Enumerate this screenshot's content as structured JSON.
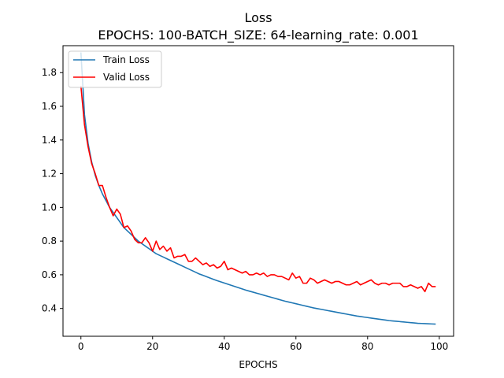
{
  "chart_data": {
    "type": "line",
    "title": "Loss",
    "subtitle": "EPOCHS: 100-BATCH_SIZE: 64-learning_rate: 0.001",
    "xlabel": "EPOCHS",
    "ylabel": "",
    "xlim": [
      -5,
      104
    ],
    "ylim": [
      0.235,
      1.96
    ],
    "xticks": [
      0,
      20,
      40,
      60,
      80,
      100
    ],
    "xtick_labels": [
      "0",
      "20",
      "40",
      "60",
      "80",
      "100"
    ],
    "yticks": [
      0.4,
      0.6,
      0.8,
      1.0,
      1.2,
      1.4,
      1.6,
      1.8
    ],
    "ytick_labels": [
      "0.4",
      "0.6",
      "0.8",
      "1.0",
      "1.2",
      "1.4",
      "1.6",
      "1.8"
    ],
    "grid": false,
    "legend_position": "top-left",
    "x": [
      0,
      1,
      2,
      3,
      4,
      5,
      6,
      7,
      8,
      9,
      10,
      11,
      12,
      13,
      14,
      15,
      16,
      17,
      18,
      19,
      20,
      21,
      22,
      23,
      24,
      25,
      26,
      27,
      28,
      29,
      30,
      31,
      32,
      33,
      34,
      35,
      36,
      37,
      38,
      39,
      40,
      41,
      42,
      43,
      44,
      45,
      46,
      47,
      48,
      49,
      50,
      51,
      52,
      53,
      54,
      55,
      56,
      57,
      58,
      59,
      60,
      61,
      62,
      63,
      64,
      65,
      66,
      67,
      68,
      69,
      70,
      71,
      72,
      73,
      74,
      75,
      76,
      77,
      78,
      79,
      80,
      81,
      82,
      83,
      84,
      85,
      86,
      87,
      88,
      89,
      90,
      91,
      92,
      93,
      94,
      95,
      96,
      97,
      98,
      99
    ],
    "series": [
      {
        "name": "Train Loss",
        "color": "#1f77b4",
        "values": [
          1.92,
          1.55,
          1.38,
          1.27,
          1.19,
          1.13,
          1.08,
          1.04,
          1.0,
          0.97,
          0.94,
          0.91,
          0.88,
          0.86,
          0.84,
          0.82,
          0.8,
          0.785,
          0.77,
          0.755,
          0.74,
          0.725,
          0.715,
          0.705,
          0.695,
          0.685,
          0.675,
          0.665,
          0.655,
          0.645,
          0.635,
          0.625,
          0.615,
          0.605,
          0.597,
          0.589,
          0.581,
          0.573,
          0.565,
          0.558,
          0.551,
          0.544,
          0.537,
          0.53,
          0.523,
          0.516,
          0.509,
          0.503,
          0.497,
          0.491,
          0.485,
          0.479,
          0.473,
          0.467,
          0.461,
          0.455,
          0.449,
          0.443,
          0.438,
          0.433,
          0.428,
          0.423,
          0.418,
          0.413,
          0.408,
          0.403,
          0.399,
          0.395,
          0.391,
          0.387,
          0.383,
          0.379,
          0.375,
          0.371,
          0.367,
          0.363,
          0.359,
          0.355,
          0.352,
          0.349,
          0.346,
          0.343,
          0.34,
          0.337,
          0.334,
          0.331,
          0.328,
          0.326,
          0.324,
          0.322,
          0.32,
          0.318,
          0.316,
          0.314,
          0.312,
          0.311,
          0.31,
          0.309,
          0.308,
          0.307
        ]
      },
      {
        "name": "Valid Loss",
        "color": "#ff0000",
        "values": [
          1.72,
          1.49,
          1.36,
          1.26,
          1.2,
          1.13,
          1.13,
          1.06,
          1.0,
          0.95,
          0.99,
          0.96,
          0.88,
          0.89,
          0.86,
          0.81,
          0.79,
          0.79,
          0.82,
          0.79,
          0.74,
          0.8,
          0.75,
          0.77,
          0.74,
          0.76,
          0.7,
          0.71,
          0.71,
          0.72,
          0.68,
          0.68,
          0.7,
          0.68,
          0.66,
          0.67,
          0.65,
          0.66,
          0.64,
          0.65,
          0.68,
          0.63,
          0.64,
          0.63,
          0.62,
          0.61,
          0.62,
          0.6,
          0.6,
          0.61,
          0.6,
          0.61,
          0.59,
          0.6,
          0.6,
          0.59,
          0.59,
          0.58,
          0.57,
          0.61,
          0.58,
          0.59,
          0.55,
          0.55,
          0.58,
          0.57,
          0.55,
          0.56,
          0.57,
          0.56,
          0.55,
          0.56,
          0.56,
          0.55,
          0.54,
          0.54,
          0.55,
          0.56,
          0.54,
          0.55,
          0.56,
          0.57,
          0.55,
          0.54,
          0.55,
          0.55,
          0.54,
          0.55,
          0.55,
          0.55,
          0.53,
          0.53,
          0.54,
          0.53,
          0.52,
          0.53,
          0.5,
          0.55,
          0.53,
          0.53
        ]
      }
    ]
  }
}
